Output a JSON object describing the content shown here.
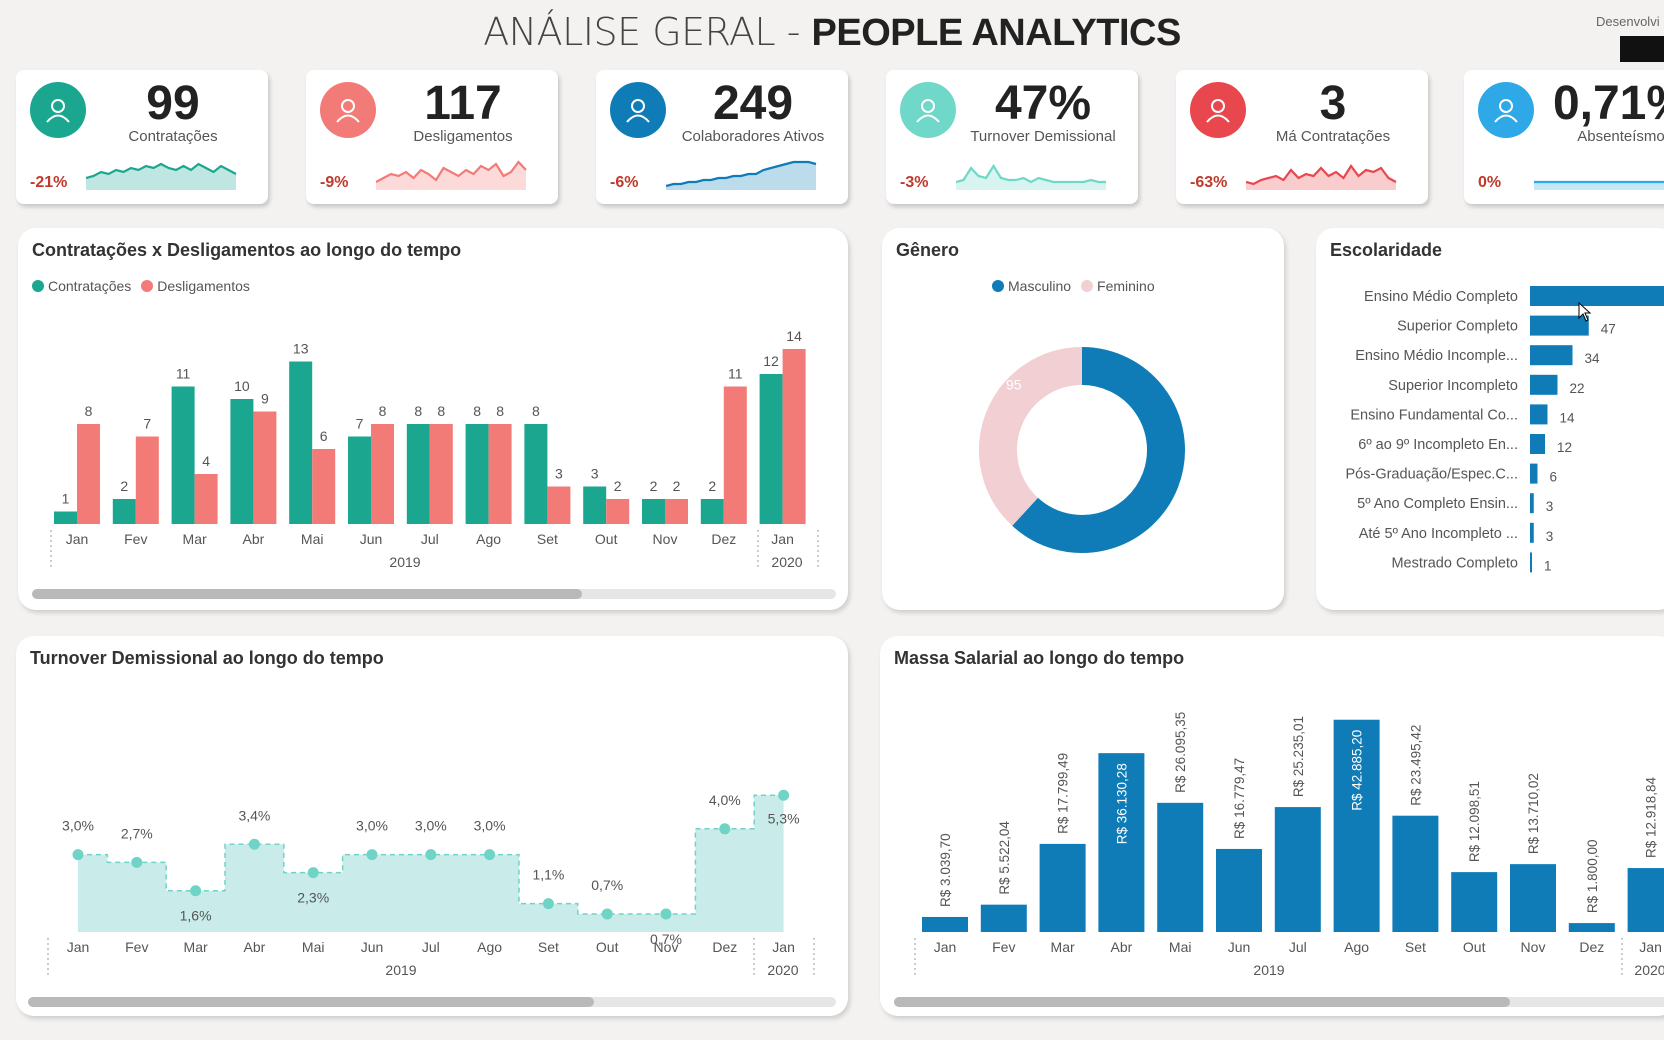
{
  "header": {
    "title_light": "ANÁLISE GERAL - ",
    "title_bold": "PEOPLE ANALYTICS",
    "developed_by": "Desenvolvi"
  },
  "colors": {
    "teal": "#1aa68f",
    "salmon": "#f27b78",
    "blue": "#0f7cb8",
    "pink": "#f2cfd3",
    "turnover_fill": "#c9ecea",
    "turnover_line": "#6fd3c6"
  },
  "kpis": [
    {
      "value": "99",
      "label": "Contratações",
      "delta": "-21%",
      "icon": "people-search-icon",
      "color": "#1aa68f"
    },
    {
      "value": "117",
      "label": "Desligamentos",
      "delta": "-9%",
      "icon": "exit-icon",
      "color": "#f27b78"
    },
    {
      "value": "249",
      "label": "Colaboradores Ativos",
      "delta": "-6%",
      "icon": "team-icon",
      "color": "#0f7cb8"
    },
    {
      "value": "47%",
      "label": "Turnover Demissional",
      "delta": "-3%",
      "icon": "turnover-icon",
      "color": "#6fd8c8"
    },
    {
      "value": "3",
      "label": "Má Contratações",
      "delta": "-63%",
      "icon": "thumbs-down-icon",
      "color": "#e8474d"
    },
    {
      "value": "0,71%",
      "label": "Absenteísmo",
      "delta": "0%",
      "icon": "absence-icon",
      "color": "#2ea8e6"
    }
  ],
  "hires_fires": {
    "title": "Contratações x Desligamentos ao longo do tempo",
    "legend": [
      "Contratações",
      "Desligamentos"
    ],
    "year1": "2019",
    "year2": "2020"
  },
  "gender": {
    "title": "Gênero",
    "legend": [
      "Masculino",
      "Feminino"
    ]
  },
  "education": {
    "title": "Escolaridade"
  },
  "turnover": {
    "title": "Turnover Demissional ao longo do tempo",
    "year1": "2019",
    "year2": "2020"
  },
  "payroll": {
    "title": "Massa Salarial ao longo do tempo",
    "year1": "2019",
    "year2": "2020"
  },
  "chart_data": [
    {
      "type": "bar",
      "title": "Contratações x Desligamentos ao longo do tempo",
      "categories": [
        "Jan",
        "Fev",
        "Mar",
        "Abr",
        "Mai",
        "Jun",
        "Jul",
        "Ago",
        "Set",
        "Out",
        "Nov",
        "Dez",
        "Jan"
      ],
      "series": [
        {
          "name": "Contratações",
          "values": [
            1,
            2,
            11,
            10,
            13,
            7,
            8,
            8,
            8,
            3,
            2,
            2,
            12
          ]
        },
        {
          "name": "Desligamentos",
          "values": [
            8,
            7,
            4,
            9,
            6,
            8,
            8,
            8,
            3,
            2,
            2,
            11,
            14
          ]
        }
      ],
      "x_groups": [
        "2019",
        "2020"
      ]
    },
    {
      "type": "pie",
      "title": "Gênero",
      "categories": [
        "Masculino",
        "Feminino"
      ],
      "values": [
        154,
        95
      ]
    },
    {
      "type": "bar",
      "title": "Escolaridade",
      "categories": [
        "Ensino Médio Completo",
        "Superior Completo",
        "Ensino Médio Incomple...",
        "Superior Incompleto",
        "Ensino Fundamental Co...",
        "6º ao 9º Incompleto En...",
        "Pós-Graduação/Espec.C...",
        "5º Ano Completo Ensin...",
        "Até 5º Ano Incompleto ...",
        "Mestrado Completo"
      ],
      "values": [
        null,
        47,
        34,
        22,
        14,
        12,
        6,
        3,
        3,
        1
      ],
      "orientation": "horizontal"
    },
    {
      "type": "area",
      "title": "Turnover Demissional ao longo do tempo",
      "categories": [
        "Jan",
        "Fev",
        "Mar",
        "Abr",
        "Mai",
        "Jun",
        "Jul",
        "Ago",
        "Set",
        "Out",
        "Nov",
        "Dez",
        "Jan"
      ],
      "values": [
        3.0,
        2.7,
        1.6,
        3.4,
        2.3,
        3.0,
        3.0,
        3.0,
        1.1,
        0.7,
        0.7,
        4.0,
        5.3
      ],
      "labels": [
        "3,0%",
        "2,7%",
        "1,6%",
        "3,4%",
        "2,3%",
        "3,0%",
        "3,0%",
        "3,0%",
        "1,1%",
        "0,7%",
        "0,7%",
        "4,0%",
        "5,3%"
      ],
      "x_groups": [
        "2019",
        "2020"
      ]
    },
    {
      "type": "bar",
      "title": "Massa Salarial ao longo do tempo",
      "categories": [
        "Jan",
        "Fev",
        "Mar",
        "Abr",
        "Mai",
        "Jun",
        "Jul",
        "Ago",
        "Set",
        "Out",
        "Nov",
        "Dez",
        "Jan"
      ],
      "values": [
        3039.7,
        5522.04,
        17799.49,
        36130.28,
        26095.35,
        16779.47,
        25235.01,
        42885.2,
        23495.42,
        12098.51,
        13710.02,
        1800.0,
        12918.84
      ],
      "labels": [
        "R$ 3.039,70",
        "R$ 5.522,04",
        "R$ 17.799,49",
        "R$ 36.130,28",
        "R$ 26.095,35",
        "R$ 16.779,47",
        "R$ 25.235,01",
        "R$ 42.885,20",
        "R$ 23.495,42",
        "R$ 12.098,51",
        "R$ 13.710,02",
        "R$ 1.800,00",
        "R$ 12.918,84"
      ],
      "x_groups": [
        "2019",
        "2020"
      ]
    }
  ]
}
